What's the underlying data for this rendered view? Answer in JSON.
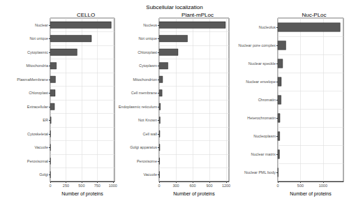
{
  "title": "Subcellular localization",
  "chart_data": [
    {
      "type": "bar",
      "orientation": "horizontal",
      "title": "CELLO",
      "categories": [
        "Nuclear",
        "Not unique",
        "Cytoplasmic",
        "Mitochondria",
        "PlasmaMembrane",
        "Chloroplast",
        "Extracellular",
        "ER",
        "Cytoskeletal",
        "Vacuole",
        "Peroxisomal",
        "Golgi"
      ],
      "values": [
        975,
        660,
        430,
        100,
        85,
        80,
        70,
        15,
        5,
        5,
        5,
        3
      ],
      "x_label": "Number of proteins",
      "color": "#595959",
      "xlim": [
        0,
        1025
      ],
      "xticks": [
        0,
        250,
        500,
        750,
        1000
      ],
      "grid": true
    },
    {
      "type": "bar",
      "orientation": "horizontal",
      "title": "Plant-mPLoc",
      "categories": [
        "Nucleus",
        "Not unique",
        "Chloroplast",
        "Cytoplasm",
        "Mitochondrion",
        "Cell membrane",
        "Endoplasmic reticulum",
        "Not Known",
        "Cell wall",
        "Golgi apparatus",
        "Peroxisome",
        "Vacuole"
      ],
      "values": [
        1190,
        510,
        340,
        160,
        65,
        55,
        25,
        20,
        15,
        15,
        10,
        8
      ],
      "x_label": "Number of proteins",
      "color": "#595959",
      "xlim": [
        0,
        1250
      ],
      "xticks": [
        0,
        300,
        600,
        900,
        1200
      ],
      "grid": true
    },
    {
      "type": "bar",
      "orientation": "horizontal",
      "title": "Nuc-PLoc",
      "categories": [
        "Nucleolus",
        "Nuclear pore complex",
        "Nuclear speckle",
        "Nuclear envelope",
        "Chromatin",
        "Heterochromatin",
        "Nucleoplasm",
        "Nuclear matrix",
        "Nuclear PML body"
      ],
      "values": [
        1380,
        180,
        110,
        80,
        75,
        50,
        45,
        40,
        10
      ],
      "x_label": "Number of proteins",
      "color": "#595959",
      "xlim": [
        0,
        1450
      ],
      "xticks": [
        0,
        500,
        1000
      ],
      "grid": true
    }
  ]
}
